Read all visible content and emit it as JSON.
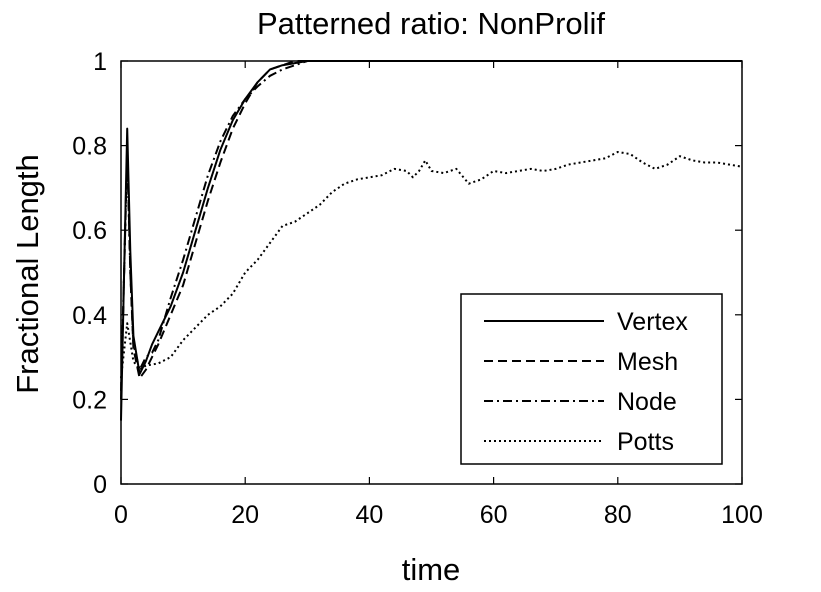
{
  "chart_data": {
    "type": "line",
    "title": "Patterned ratio: NonProlif",
    "xlabel": "time",
    "ylabel": "Fractional Length",
    "xlim": [
      0,
      100
    ],
    "ylim": [
      0,
      1
    ],
    "x_ticks": [
      "0",
      "20",
      "40",
      "60",
      "80",
      "100"
    ],
    "y_ticks": [
      "0",
      "0.2",
      "0.4",
      "0.6",
      "0.8",
      "1"
    ],
    "grid": false,
    "legend_position": "bottom-right",
    "series": [
      {
        "name": "Vertex",
        "style": "solid",
        "color": "#000000",
        "points": [
          [
            0,
            0.15
          ],
          [
            0.5,
            0.5
          ],
          [
            1,
            0.84
          ],
          [
            1.5,
            0.55
          ],
          [
            2,
            0.35
          ],
          [
            3,
            0.26
          ],
          [
            4,
            0.29
          ],
          [
            5,
            0.33
          ],
          [
            6,
            0.36
          ],
          [
            8,
            0.42
          ],
          [
            10,
            0.5
          ],
          [
            12,
            0.6
          ],
          [
            14,
            0.7
          ],
          [
            16,
            0.79
          ],
          [
            18,
            0.86
          ],
          [
            20,
            0.91
          ],
          [
            22,
            0.95
          ],
          [
            24,
            0.98
          ],
          [
            26,
            0.99
          ],
          [
            28,
            0.995
          ],
          [
            30,
            1.0
          ],
          [
            35,
            1.0
          ],
          [
            50,
            1.0
          ],
          [
            100,
            1.0
          ]
        ]
      },
      {
        "name": "Mesh",
        "style": "dashed",
        "color": "#000000",
        "points": [
          [
            0,
            0.2
          ],
          [
            0.5,
            0.5
          ],
          [
            1,
            0.8
          ],
          [
            1.5,
            0.5
          ],
          [
            2,
            0.32
          ],
          [
            3,
            0.25
          ],
          [
            4,
            0.27
          ],
          [
            5,
            0.3
          ],
          [
            6,
            0.33
          ],
          [
            8,
            0.4
          ],
          [
            10,
            0.47
          ],
          [
            12,
            0.57
          ],
          [
            14,
            0.67
          ],
          [
            16,
            0.76
          ],
          [
            18,
            0.84
          ],
          [
            20,
            0.9
          ],
          [
            22,
            0.95
          ],
          [
            24,
            0.98
          ],
          [
            26,
            0.99
          ],
          [
            28,
            1.0
          ],
          [
            35,
            1.0
          ],
          [
            50,
            1.0
          ],
          [
            100,
            1.0
          ]
        ]
      },
      {
        "name": "Node",
        "style": "dashdot",
        "color": "#000000",
        "points": [
          [
            0,
            0.22
          ],
          [
            0.5,
            0.5
          ],
          [
            1,
            0.78
          ],
          [
            1.5,
            0.5
          ],
          [
            2,
            0.33
          ],
          [
            3,
            0.27
          ],
          [
            4,
            0.3
          ],
          [
            5,
            0.31
          ],
          [
            6,
            0.34
          ],
          [
            8,
            0.44
          ],
          [
            10,
            0.53
          ],
          [
            12,
            0.63
          ],
          [
            14,
            0.73
          ],
          [
            16,
            0.81
          ],
          [
            18,
            0.87
          ],
          [
            20,
            0.91
          ],
          [
            22,
            0.94
          ],
          [
            24,
            0.965
          ],
          [
            26,
            0.98
          ],
          [
            28,
            0.99
          ],
          [
            30,
            1.0
          ],
          [
            35,
            1.0
          ],
          [
            50,
            1.0
          ],
          [
            100,
            1.0
          ]
        ]
      },
      {
        "name": "Potts",
        "style": "dotted",
        "color": "#000000",
        "points": [
          [
            0,
            0.25
          ],
          [
            1,
            0.38
          ],
          [
            2,
            0.29
          ],
          [
            3,
            0.27
          ],
          [
            4,
            0.28
          ],
          [
            6,
            0.285
          ],
          [
            8,
            0.3
          ],
          [
            10,
            0.34
          ],
          [
            12,
            0.37
          ],
          [
            14,
            0.4
          ],
          [
            16,
            0.42
          ],
          [
            18,
            0.45
          ],
          [
            20,
            0.5
          ],
          [
            22,
            0.53
          ],
          [
            24,
            0.57
          ],
          [
            26,
            0.61
          ],
          [
            28,
            0.62
          ],
          [
            30,
            0.64
          ],
          [
            32,
            0.66
          ],
          [
            34,
            0.69
          ],
          [
            36,
            0.71
          ],
          [
            38,
            0.72
          ],
          [
            40,
            0.725
          ],
          [
            42,
            0.73
          ],
          [
            44,
            0.745
          ],
          [
            46,
            0.74
          ],
          [
            47,
            0.725
          ],
          [
            48,
            0.74
          ],
          [
            49,
            0.765
          ],
          [
            50,
            0.74
          ],
          [
            52,
            0.735
          ],
          [
            54,
            0.745
          ],
          [
            56,
            0.71
          ],
          [
            58,
            0.72
          ],
          [
            60,
            0.74
          ],
          [
            62,
            0.735
          ],
          [
            64,
            0.74
          ],
          [
            66,
            0.745
          ],
          [
            68,
            0.74
          ],
          [
            70,
            0.745
          ],
          [
            72,
            0.755
          ],
          [
            74,
            0.76
          ],
          [
            76,
            0.765
          ],
          [
            78,
            0.77
          ],
          [
            80,
            0.785
          ],
          [
            82,
            0.78
          ],
          [
            84,
            0.76
          ],
          [
            86,
            0.745
          ],
          [
            88,
            0.755
          ],
          [
            90,
            0.775
          ],
          [
            92,
            0.765
          ],
          [
            94,
            0.76
          ],
          [
            96,
            0.76
          ],
          [
            98,
            0.755
          ],
          [
            100,
            0.75
          ]
        ]
      }
    ]
  }
}
